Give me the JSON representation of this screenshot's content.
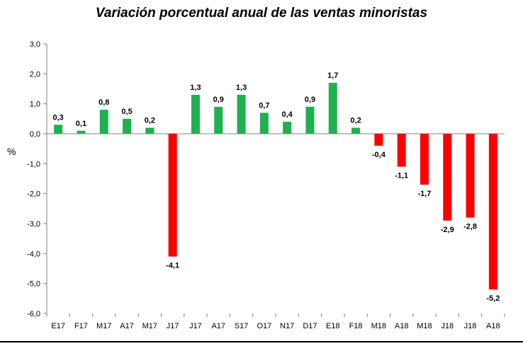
{
  "chart_data": {
    "type": "bar",
    "title": "Variación porcentual anual de las ventas minoristas",
    "ylabel": "%",
    "xlabel": "",
    "ylim": [
      -6,
      3
    ],
    "yticks": [
      "3,0",
      "2,0",
      "1,0",
      "0,0",
      "-1,0",
      "-2,0",
      "-3,0",
      "-4,0",
      "-5,0",
      "-6,0"
    ],
    "ytick_values": [
      3,
      2,
      1,
      0,
      -1,
      -2,
      -3,
      -4,
      -5,
      -6
    ],
    "categories": [
      "E17",
      "F17",
      "M17",
      "A17",
      "M17",
      "J17",
      "J17",
      "A17",
      "S17",
      "O17",
      "N17",
      "D17",
      "E18",
      "F18",
      "M18",
      "A18",
      "M18",
      "J18",
      "J18",
      "A18"
    ],
    "values": [
      0.3,
      0.1,
      0.8,
      0.5,
      0.2,
      -4.1,
      1.3,
      0.9,
      1.3,
      0.7,
      0.4,
      0.9,
      1.7,
      0.2,
      -0.4,
      -1.1,
      -1.7,
      -2.9,
      -2.8,
      -5.2
    ],
    "data_labels": [
      "0,3",
      "0,1",
      "0,8",
      "0,5",
      "0,2",
      "-4,1",
      "1,3",
      "0,9",
      "1,3",
      "0,7",
      "0,4",
      "0,9",
      "1,7",
      "0,2",
      "-0,4",
      "-1,1",
      "-1,7",
      "-2,9",
      "-2,8",
      "-5,2"
    ],
    "grid": false,
    "legend": "none",
    "colors": {
      "positive": "#1fb050",
      "negative": "#ff0000",
      "axis": "#808080"
    }
  }
}
